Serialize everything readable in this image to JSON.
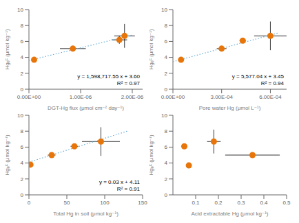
{
  "chart_data": [
    {
      "type": "scatter",
      "xlabel": "DGT-Hg  flux (μmol cm⁻² day⁻¹)",
      "ylabel": "Hgₑᴱ (μmol kg⁻¹)",
      "annotations": [
        "y = 1,598,717.55 x + 3.60",
        "R² = 0.97"
      ],
      "xlim": [
        0,
        2.2e-06
      ],
      "ylim": [
        0,
        10
      ],
      "xticks": [
        {
          "value": 0,
          "label": "0.00E+00"
        },
        {
          "value": 1e-06,
          "label": "1.00E-06"
        },
        {
          "value": 2e-06,
          "label": "2.00E-06"
        }
      ],
      "yticks": [
        0,
        2,
        4,
        6,
        8,
        10
      ],
      "series": [
        {
          "type": "scatter",
          "color": "#E8750A",
          "marker": "circle",
          "x": [
            1e-07,
            8.5e-07,
            1.75e-06,
            1.85e-06
          ],
          "values": [
            3.7,
            5.1,
            6.2,
            6.7
          ],
          "xerr": [
            0.0,
            2.5e-07,
            1.5e-07,
            2e-07
          ],
          "yerr": [
            0.3,
            0.3,
            0.5,
            1.5
          ]
        },
        {
          "type": "line",
          "color": "#6baed6",
          "line_style": "dotted",
          "x": [
            0,
            2e-06
          ],
          "values": [
            3.6,
            6.7974
          ]
        }
      ]
    },
    {
      "type": "scatter",
      "xlabel": "Pore water Hg (μmol L⁻¹)",
      "ylabel": "Hgₑᴱ (μmol kg⁻¹)",
      "annotations": [
        "y = 5,577.04 x + 3.45",
        "R² = 0.94"
      ],
      "xlim": [
        0,
        0.0007
      ],
      "ylim": [
        0,
        10
      ],
      "xticks": [
        {
          "value": 0,
          "label": "0.00E+00"
        },
        {
          "value": 0.0003,
          "label": "3.00E-04"
        },
        {
          "value": 0.0006,
          "label": "6.00E-04"
        }
      ],
      "yticks": [
        0,
        2,
        4,
        6,
        8,
        10
      ],
      "series": [
        {
          "type": "scatter",
          "color": "#E8750A",
          "marker": "circle",
          "x": [
            5e-05,
            0.0003,
            0.00043,
            0.0006
          ],
          "values": [
            3.7,
            5.1,
            6.1,
            6.7
          ],
          "xerr": [
            1e-05,
            3e-05,
            2e-05,
            0.0001
          ],
          "yerr": [
            0.3,
            0.3,
            0.3,
            1.8
          ]
        },
        {
          "type": "line",
          "color": "#6baed6",
          "line_style": "dotted",
          "x": [
            0,
            0.00065
          ],
          "values": [
            3.45,
            7.075
          ]
        }
      ]
    },
    {
      "type": "scatter",
      "xlabel": "Total Hg in soil (μmol kg⁻¹)",
      "ylabel": "Hgₑᴱ (μmol kg⁻¹)",
      "annotations": [
        "y = 0.03 x + 4.11",
        "R² = 0.91"
      ],
      "xlim": [
        0,
        150
      ],
      "ylim": [
        0,
        10
      ],
      "xticks": [
        0,
        50,
        100,
        150
      ],
      "yticks": [
        0,
        2,
        4,
        6,
        8,
        10
      ],
      "series": [
        {
          "type": "scatter",
          "color": "#E8750A",
          "marker": "circle",
          "x": [
            2,
            30,
            60,
            95
          ],
          "values": [
            3.8,
            5.0,
            6.1,
            6.7
          ],
          "xerr": [
            1,
            5,
            5,
            25
          ],
          "yerr": [
            0.3,
            0.3,
            0.3,
            1.8
          ]
        },
        {
          "type": "line",
          "color": "#6baed6",
          "line_style": "dotted",
          "x": [
            0,
            130
          ],
          "values": [
            4.11,
            8.01
          ]
        }
      ]
    },
    {
      "type": "scatter",
      "xlabel": "Acid extractable Hg (μmol kg⁻¹)",
      "ylabel": "Hgₑᴱ (μmol kg⁻¹)",
      "xlim": [
        0,
        0.5
      ],
      "ylim": [
        0,
        10
      ],
      "xticks": [
        0.1,
        0.2,
        0.3,
        0.4,
        0.5
      ],
      "yticks": [
        0,
        2,
        4,
        6,
        8,
        10
      ],
      "series": [
        {
          "type": "scatter",
          "color": "#E8750A",
          "marker": "circle",
          "x": [
            0.05,
            0.07,
            0.18,
            0.35
          ],
          "values": [
            6.1,
            3.7,
            6.7,
            5.0
          ],
          "xerr": [
            0.01,
            0.01,
            0.03,
            0.12
          ],
          "yerr": [
            0.3,
            0.3,
            1.5,
            0.3
          ]
        }
      ]
    }
  ]
}
